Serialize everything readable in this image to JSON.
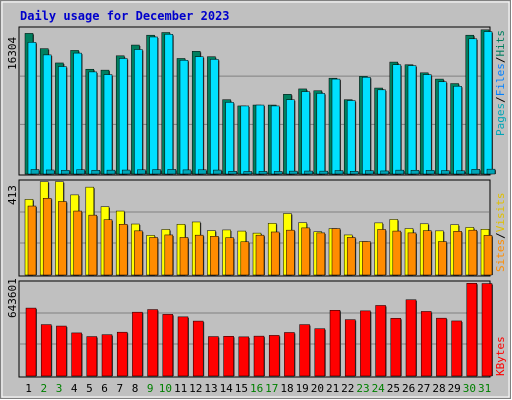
{
  "title": "Daily usage for December 2023",
  "colors": {
    "pages": "#00a6b7",
    "files": "#00e0ff",
    "hits": "#007f5f",
    "visits": "#ffff00",
    "sites": "#ff8c00",
    "kbytes": "#ff0000",
    "panel": "#c0c0c0",
    "weekend": "#008000",
    "weekday": "#000000",
    "titleColor": "#0000cc"
  },
  "chart_data": [
    {
      "type": "bar",
      "name": "hits-files-pages",
      "series": [
        {
          "name": "Hits",
          "values": [
            15700,
            14000,
            12400,
            13800,
            11700,
            11600,
            13200,
            14400,
            15500,
            15800,
            12900,
            13700,
            13100,
            8300,
            7600,
            7700,
            7700,
            8900,
            9500,
            9300,
            10700,
            8300,
            10900,
            9600,
            12500,
            12200,
            11300,
            10600,
            10100,
            15500,
            16100
          ]
        },
        {
          "name": "Files",
          "values": [
            14700,
            13300,
            12000,
            13500,
            11400,
            11100,
            12900,
            13900,
            15300,
            15600,
            12700,
            13100,
            12800,
            8000,
            7600,
            7700,
            7600,
            8300,
            9200,
            9000,
            10600,
            8200,
            10800,
            9400,
            12200,
            12100,
            11100,
            10300,
            9800,
            15100,
            15900
          ]
        },
        {
          "name": "Pages",
          "values": [
            500,
            450,
            420,
            480,
            420,
            430,
            440,
            470,
            490,
            510,
            460,
            470,
            440,
            300,
            280,
            290,
            290,
            320,
            330,
            320,
            380,
            300,
            380,
            340,
            430,
            420,
            410,
            380,
            360,
            520,
            540
          ]
        }
      ],
      "ymax_label": "16304",
      "ylabel_parts": [
        "Pages",
        "Files",
        "Hits"
      ]
    },
    {
      "type": "bar",
      "name": "visits-sites",
      "series": [
        {
          "name": "Visits",
          "values": [
            332,
            410,
            410,
            352,
            386,
            300,
            281,
            224,
            174,
            200,
            223,
            233,
            195,
            198,
            193,
            184,
            227,
            270,
            230,
            190,
            204,
            176,
            147,
            229,
            244,
            204,
            225,
            194,
            221,
            209,
            201
          ]
        },
        {
          "name": "Sites",
          "values": [
            303,
            337,
            323,
            281,
            263,
            243,
            223,
            194,
            165,
            176,
            165,
            175,
            170,
            164,
            146,
            175,
            189,
            197,
            207,
            185,
            204,
            165,
            147,
            200,
            193,
            185,
            195,
            147,
            192,
            197,
            174
          ]
        }
      ],
      "ymax_label": "413",
      "ylabel_parts": [
        "Sites",
        "Visits"
      ]
    },
    {
      "type": "bar",
      "name": "kbytes",
      "series": [
        {
          "name": "KBytes",
          "values": [
            465000,
            352000,
            342000,
            295000,
            270000,
            283000,
            300000,
            437000,
            455000,
            422000,
            405000,
            376000,
            270000,
            272000,
            268000,
            273000,
            278000,
            298000,
            352000,
            324000,
            450000,
            386000,
            446000,
            483000,
            395000,
            522000,
            442000,
            396000,
            377000,
            635000,
            633000
          ]
        }
      ],
      "ymax_label": "643601",
      "ylabel_parts": [
        "KBytes"
      ]
    }
  ],
  "days": [
    "1",
    "2",
    "3",
    "4",
    "5",
    "6",
    "7",
    "8",
    "9",
    "10",
    "11",
    "12",
    "13",
    "14",
    "15",
    "16",
    "17",
    "18",
    "19",
    "20",
    "21",
    "22",
    "23",
    "24",
    "25",
    "26",
    "27",
    "28",
    "29",
    "30",
    "31"
  ],
  "weekend_days": [
    2,
    3,
    9,
    10,
    16,
    17,
    23,
    24,
    30,
    31
  ]
}
